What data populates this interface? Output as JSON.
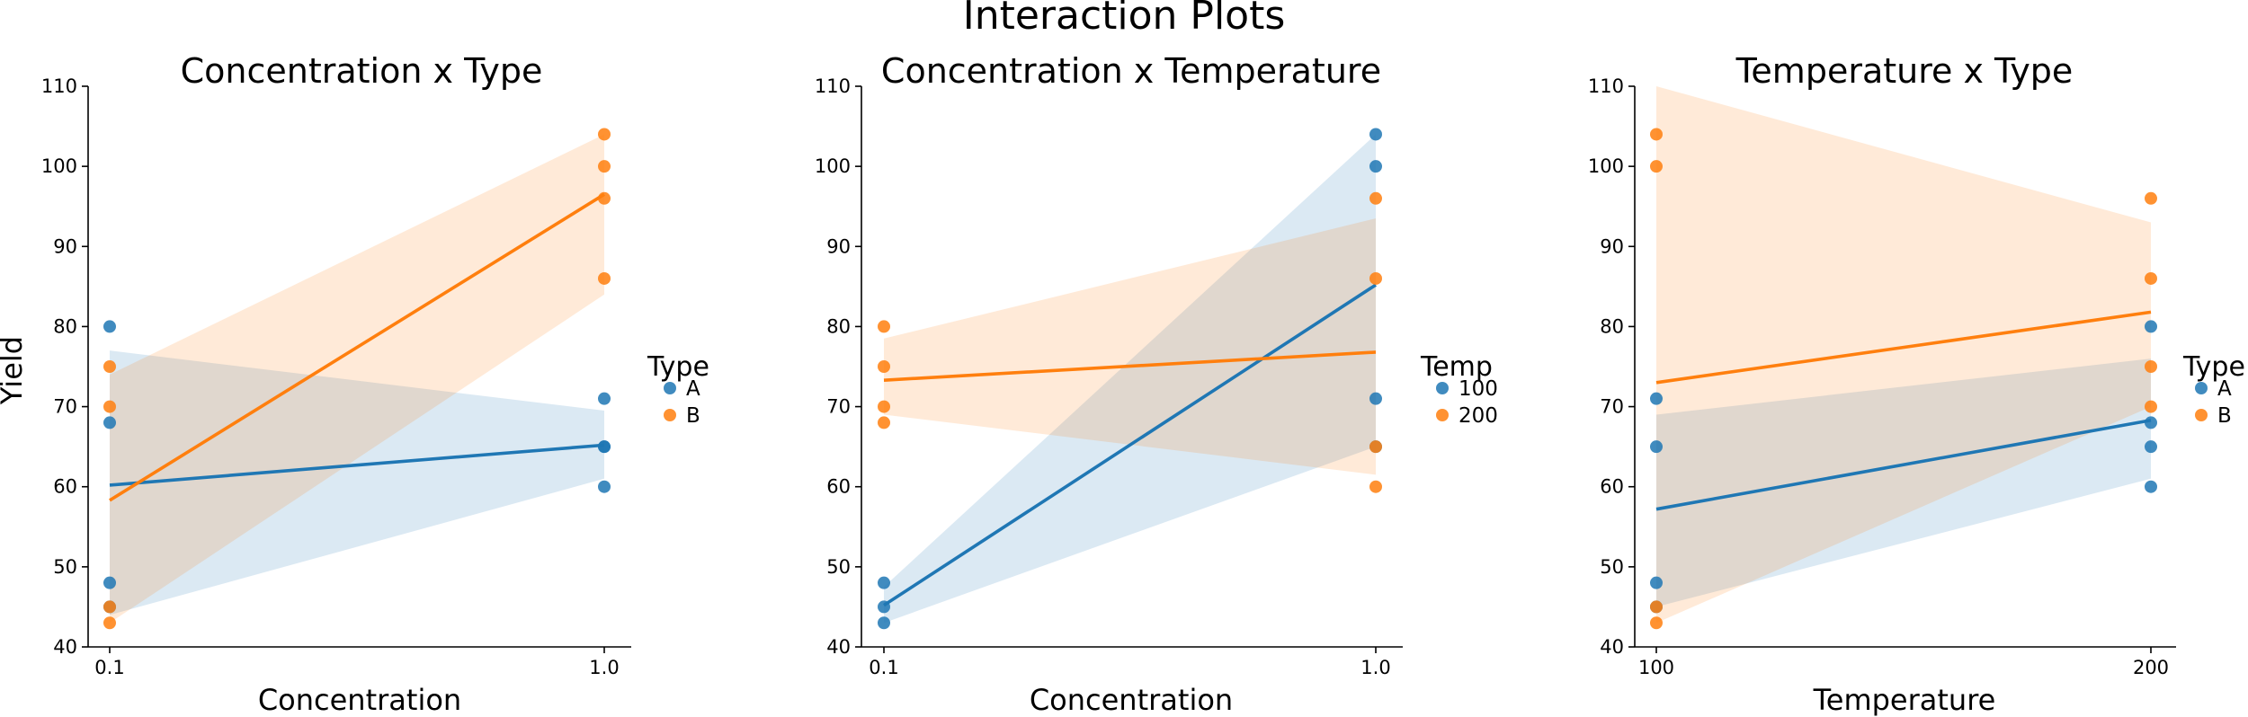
{
  "figure_title": "Interaction Plots",
  "colors": {
    "A": "#1f77b4",
    "B": "#ff7f0e"
  },
  "chart_data": [
    {
      "type": "scatter",
      "title": "Concentration x Type",
      "xlabel": "Concentration",
      "ylabel": "Yield",
      "x_categories": [
        "0.1",
        "1.0"
      ],
      "ylim": [
        40,
        110
      ],
      "yticks": [
        40,
        50,
        60,
        70,
        80,
        90,
        100,
        110
      ],
      "legend": {
        "title": "Type",
        "placement": "right"
      },
      "grid": false,
      "series": [
        {
          "name": "A",
          "color": "#1f77b4",
          "points": [
            [
              0.1,
              80
            ],
            [
              0.1,
              68
            ],
            [
              0.1,
              48
            ],
            [
              0.1,
              45
            ],
            [
              1.0,
              71
            ],
            [
              1.0,
              65
            ],
            [
              1.0,
              65
            ],
            [
              1.0,
              60
            ]
          ],
          "fit": [
            [
              0.1,
              60.2
            ],
            [
              1.0,
              65.2
            ]
          ],
          "ci": {
            "upper": [
              77,
              69.5
            ],
            "lower": [
              44,
              61
            ]
          }
        },
        {
          "name": "B",
          "color": "#ff7f0e",
          "points": [
            [
              0.1,
              75
            ],
            [
              0.1,
              70
            ],
            [
              0.1,
              45
            ],
            [
              0.1,
              43
            ],
            [
              1.0,
              104
            ],
            [
              1.0,
              100
            ],
            [
              1.0,
              96
            ],
            [
              1.0,
              86
            ]
          ],
          "fit": [
            [
              0.1,
              58.3
            ],
            [
              1.0,
              96.5
            ]
          ],
          "ci": {
            "upper": [
              74,
              104
            ],
            "lower": [
              43,
              84
            ]
          }
        }
      ]
    },
    {
      "type": "scatter",
      "title": "Concentration x Temperature",
      "xlabel": "Concentration",
      "ylabel": "",
      "x_categories": [
        "0.1",
        "1.0"
      ],
      "ylim": [
        40,
        110
      ],
      "yticks": [
        40,
        50,
        60,
        70,
        80,
        90,
        100,
        110
      ],
      "legend": {
        "title": "Temp",
        "placement": "right"
      },
      "grid": false,
      "series": [
        {
          "name": "100",
          "color": "#1f77b4",
          "points": [
            [
              0.1,
              48
            ],
            [
              0.1,
              45
            ],
            [
              0.1,
              43
            ],
            [
              1.0,
              104
            ],
            [
              1.0,
              100
            ],
            [
              1.0,
              71
            ],
            [
              1.0,
              65
            ]
          ],
          "fit": [
            [
              0.1,
              45.2
            ],
            [
              1.0,
              85.2
            ]
          ],
          "ci": {
            "upper": [
              47.5,
              104
            ],
            "lower": [
              43,
              65
            ]
          }
        },
        {
          "name": "200",
          "color": "#ff7f0e",
          "points": [
            [
              0.1,
              80
            ],
            [
              0.1,
              75
            ],
            [
              0.1,
              70
            ],
            [
              0.1,
              68
            ],
            [
              1.0,
              96
            ],
            [
              1.0,
              86
            ],
            [
              1.0,
              65
            ],
            [
              1.0,
              60
            ]
          ],
          "fit": [
            [
              0.1,
              73.3
            ],
            [
              1.0,
              76.8
            ]
          ],
          "ci": {
            "upper": [
              78.5,
              93.5
            ],
            "lower": [
              69,
              61.5
            ]
          }
        }
      ]
    },
    {
      "type": "scatter",
      "title": "Temperature x Type",
      "xlabel": "Temperature",
      "ylabel": "",
      "x_categories": [
        "100",
        "200"
      ],
      "ylim": [
        40,
        110
      ],
      "yticks": [
        40,
        50,
        60,
        70,
        80,
        90,
        100,
        110
      ],
      "legend": {
        "title": "Type",
        "placement": "right"
      },
      "grid": false,
      "series": [
        {
          "name": "A",
          "color": "#1f77b4",
          "points": [
            [
              100,
              71
            ],
            [
              100,
              65
            ],
            [
              100,
              48
            ],
            [
              100,
              45
            ],
            [
              200,
              80
            ],
            [
              200,
              68
            ],
            [
              200,
              65
            ],
            [
              200,
              60
            ]
          ],
          "fit": [
            [
              100,
              57.2
            ],
            [
              200,
              68.3
            ]
          ],
          "ci": {
            "upper": [
              69,
              76
            ],
            "lower": [
              45,
              61
            ]
          }
        },
        {
          "name": "B",
          "color": "#ff7f0e",
          "points": [
            [
              100,
              104
            ],
            [
              100,
              100
            ],
            [
              100,
              45
            ],
            [
              100,
              43
            ],
            [
              200,
              96
            ],
            [
              200,
              86
            ],
            [
              200,
              75
            ],
            [
              200,
              70
            ]
          ],
          "fit": [
            [
              100,
              73
            ],
            [
              200,
              81.8
            ]
          ],
          "ci": {
            "upper": [
              110,
              93
            ],
            "lower": [
              43,
              70
            ]
          }
        }
      ]
    }
  ]
}
